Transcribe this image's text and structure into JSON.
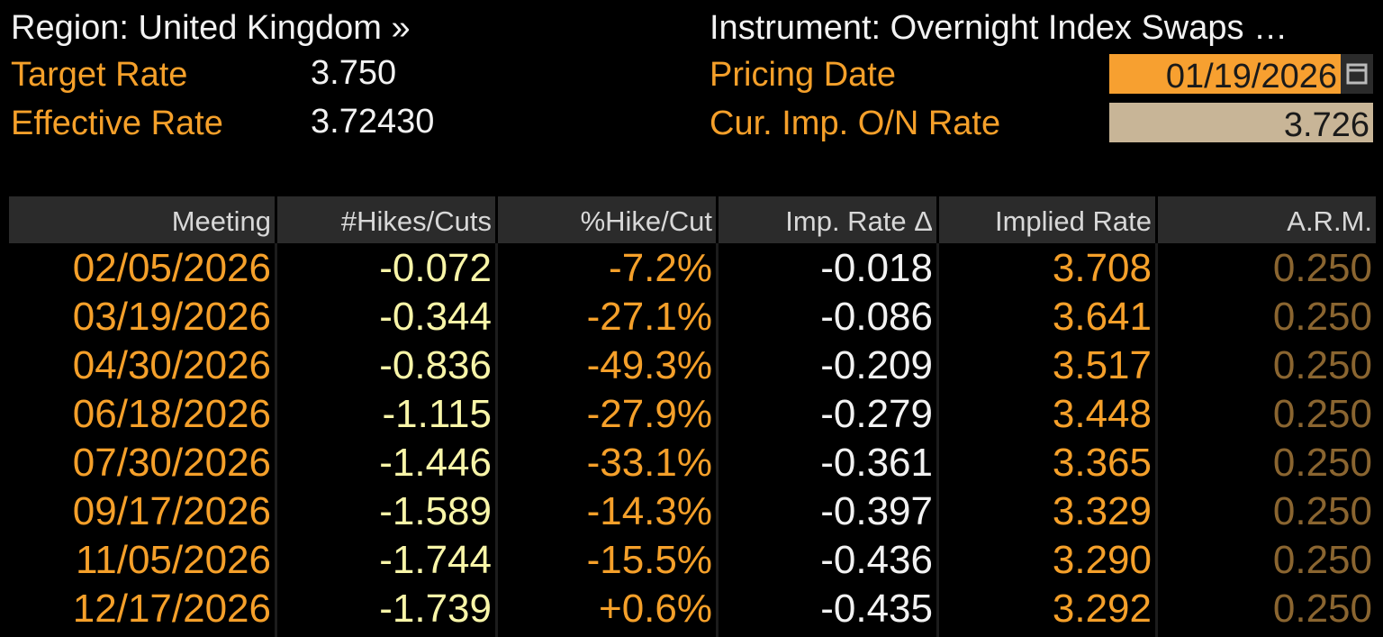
{
  "header": {
    "region": "Region: United Kingdom »",
    "instrument": "Instrument: Overnight Index Swaps …",
    "fields": [
      {
        "label": "Target Rate",
        "value": "3.750"
      },
      {
        "label": "Effective Rate",
        "value": "3.72430"
      }
    ],
    "pricing_date": {
      "label": "Pricing Date",
      "value": "01/19/2026"
    },
    "cur_imp_rate": {
      "label": "Cur. Imp. O/N Rate",
      "value": "3.726"
    }
  },
  "table": {
    "columns": [
      "Meeting",
      "#Hikes/Cuts",
      "%Hike/Cut",
      "Imp. Rate Δ",
      "Implied Rate",
      "A.R.M."
    ],
    "rows": [
      [
        "02/05/2026",
        "-0.072",
        "-7.2%",
        "-0.018",
        "3.708",
        "0.250"
      ],
      [
        "03/19/2026",
        "-0.344",
        "-27.1%",
        "-0.086",
        "3.641",
        "0.250"
      ],
      [
        "04/30/2026",
        "-0.836",
        "-49.3%",
        "-0.209",
        "3.517",
        "0.250"
      ],
      [
        "06/18/2026",
        "-1.115",
        "-27.9%",
        "-0.279",
        "3.448",
        "0.250"
      ],
      [
        "07/30/2026",
        "-1.446",
        "-33.1%",
        "-0.361",
        "3.365",
        "0.250"
      ],
      [
        "09/17/2026",
        "-1.589",
        "-14.3%",
        "-0.397",
        "3.329",
        "0.250"
      ],
      [
        "11/05/2026",
        "-1.744",
        "-15.5%",
        "-0.436",
        "3.290",
        "0.250"
      ],
      [
        "12/17/2026",
        "-1.739",
        "+0.6%",
        "-0.435",
        "3.292",
        "0.250"
      ]
    ]
  }
}
